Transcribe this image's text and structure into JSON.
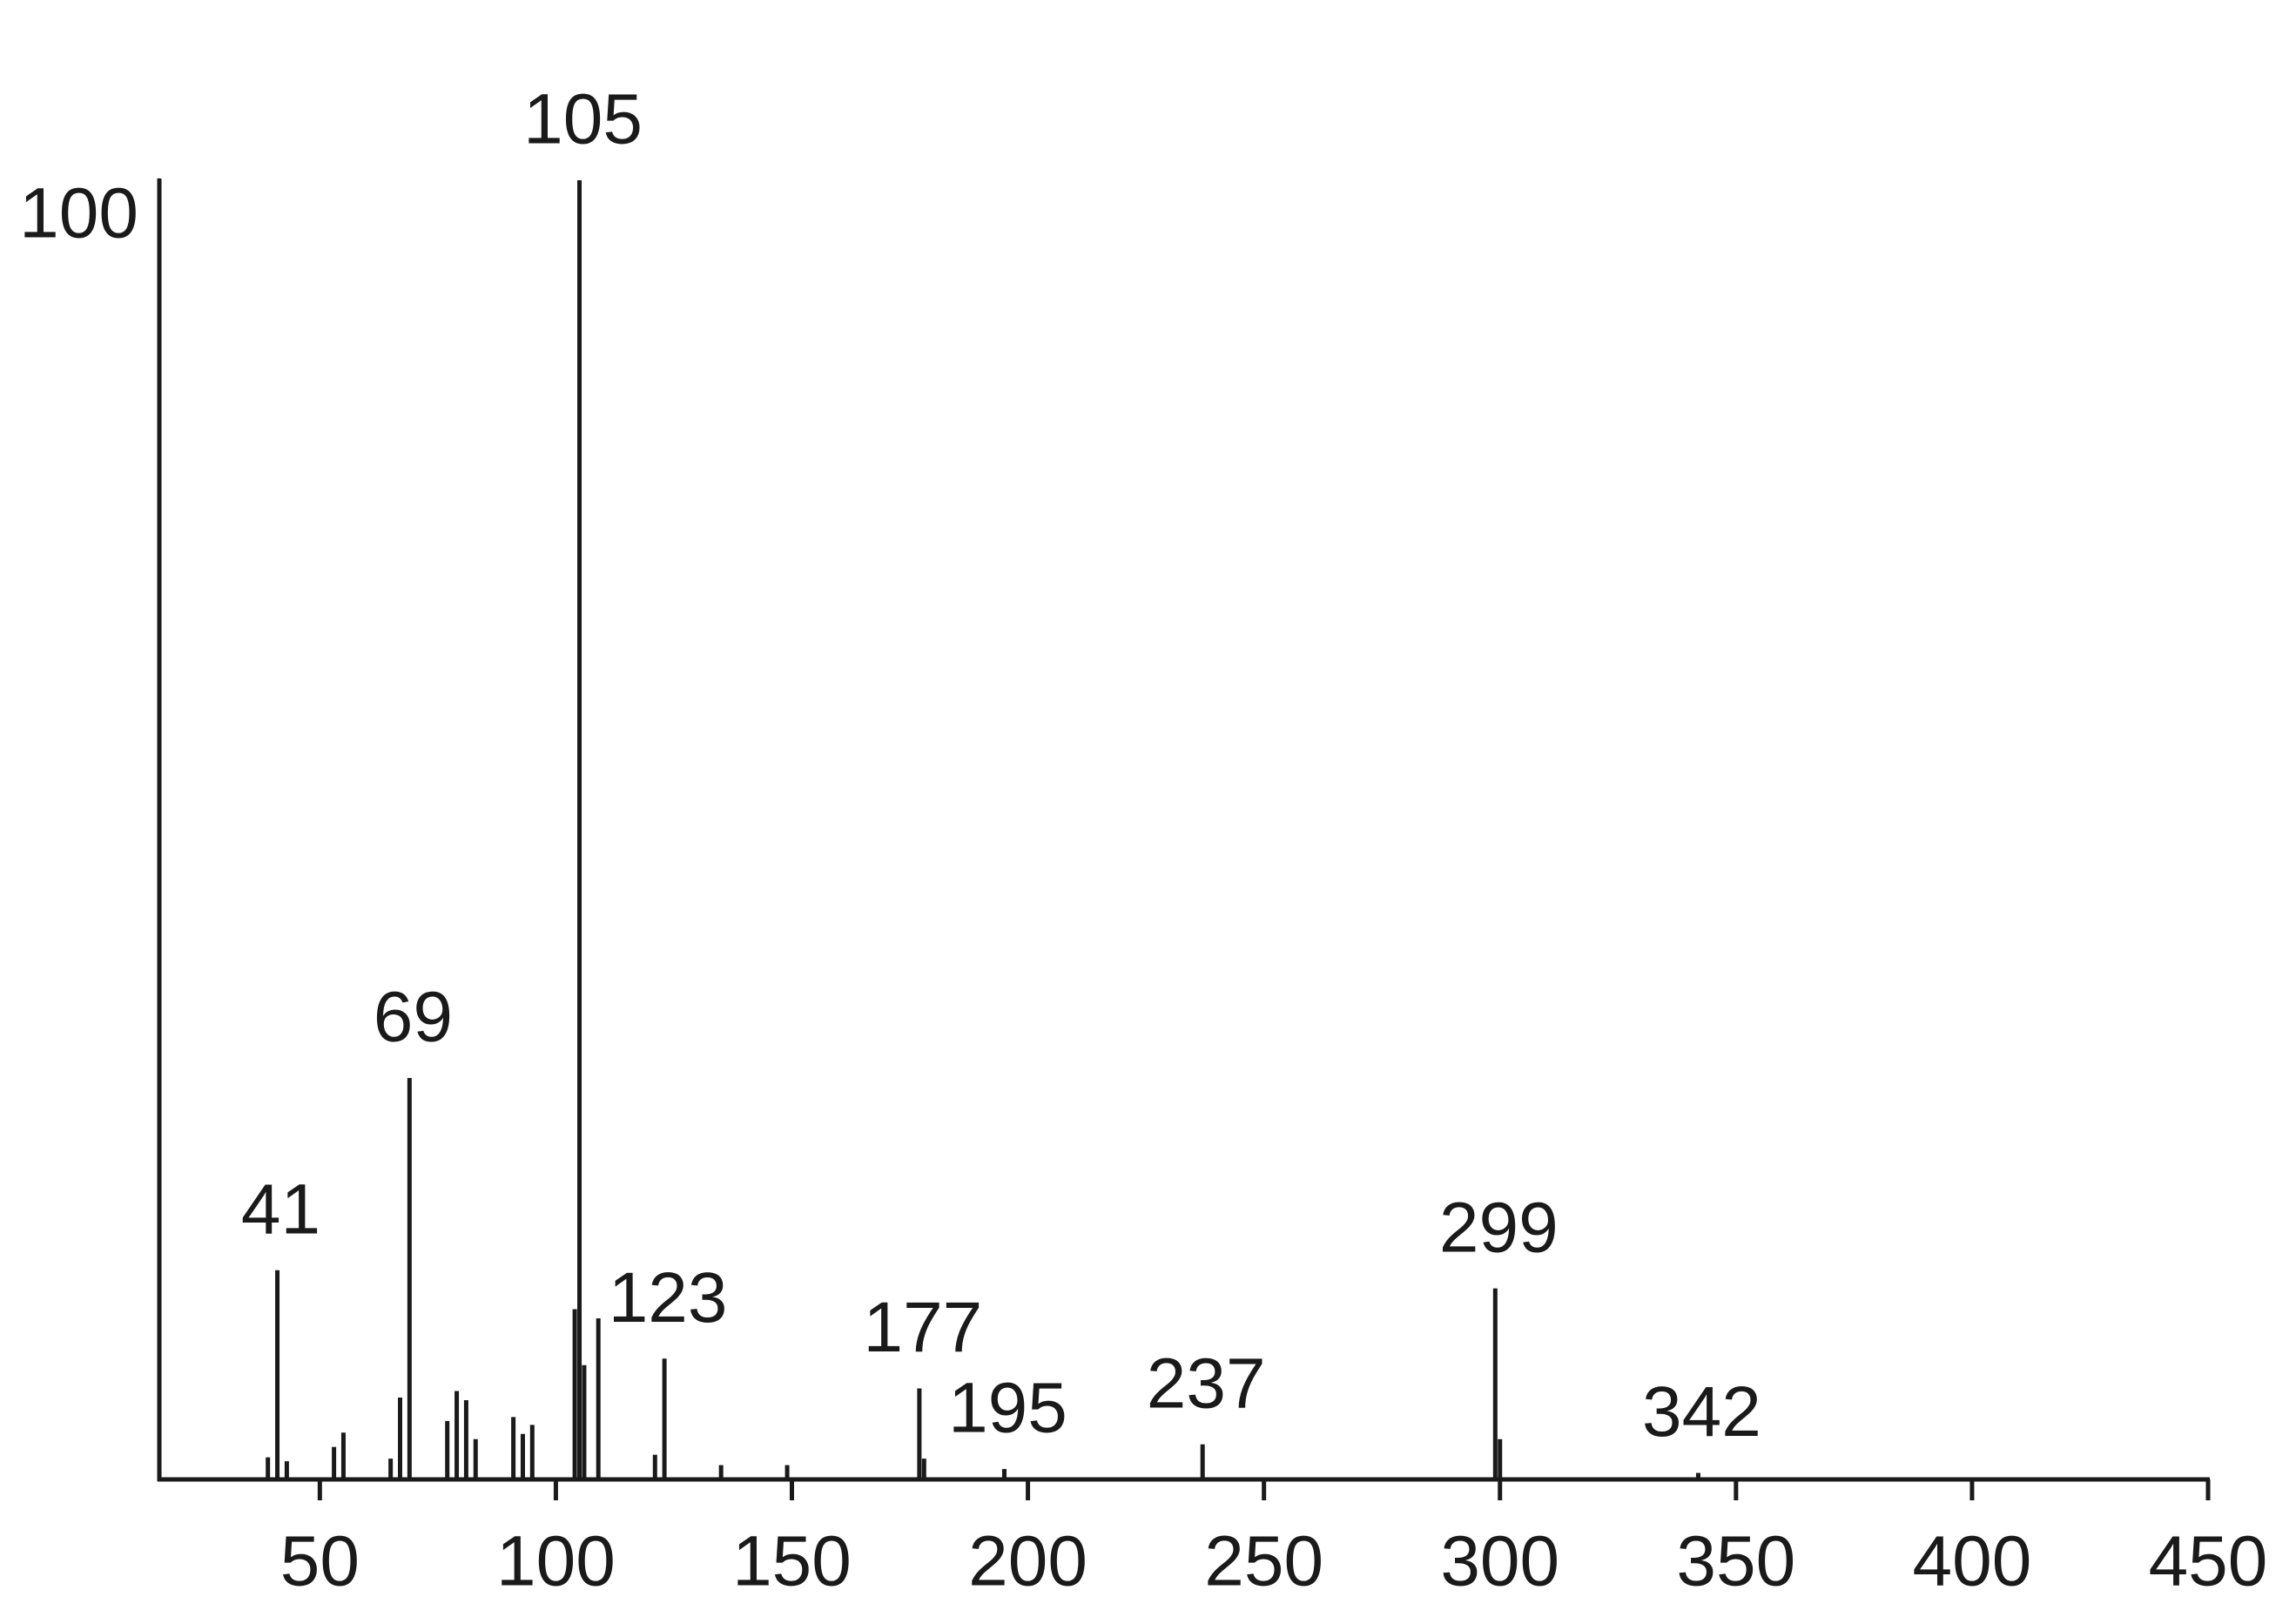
{
  "chart_data": {
    "type": "spectrum",
    "x": [
      41,
      69,
      105,
      123,
      177,
      195,
      237,
      299,
      342
    ],
    "values": [
      16.1,
      30.9,
      100,
      9.3,
      7.0,
      0.8,
      2.7,
      14.7,
      0.5
    ],
    "minor_x": [
      39,
      43,
      53,
      55,
      65,
      67,
      77,
      79,
      81,
      83,
      91,
      93,
      95,
      104,
      106,
      109,
      121,
      135,
      149,
      178,
      300
    ],
    "minor_values": [
      1.7,
      1.4,
      2.5,
      3.6,
      1.6,
      6.3,
      4.5,
      6.8,
      6.1,
      3.1,
      4.8,
      3.5,
      4.2,
      13.1,
      8.8,
      12.4,
      1.9,
      1.1,
      1.1,
      1.6,
      3.1
    ],
    "color": "#1a1a1a",
    "xlim": [
      16,
      450
    ],
    "xticks": [
      50,
      100,
      150,
      200,
      250,
      300,
      350,
      400,
      450
    ],
    "ylim": [
      0,
      100
    ],
    "yticks": [
      100
    ]
  }
}
